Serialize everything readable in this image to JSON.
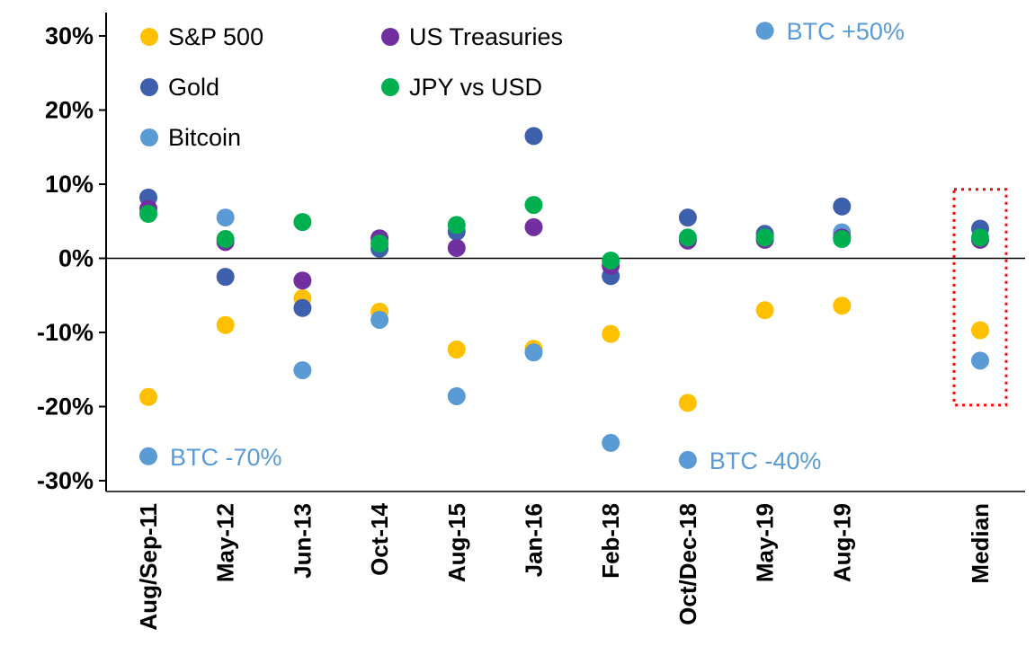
{
  "chart_data": {
    "type": "scatter",
    "title": "",
    "categories": [
      "Aug/Sep-11",
      "May-12",
      "Jun-13",
      "Oct-14",
      "Aug-15",
      "Jan-16",
      "Feb-18",
      "Oct/Dec-18",
      "May-19",
      "Aug-19",
      "Median"
    ],
    "ylim": [
      -30,
      30
    ],
    "yticks": [
      30,
      20,
      10,
      0,
      -10,
      -20,
      -30
    ],
    "ytick_suffix": "%",
    "grid": false,
    "legend_position": "top-left-inside",
    "series": [
      {
        "name": "S&P 500",
        "color": "#FFC000",
        "values": [
          -18.7,
          -9.0,
          -5.4,
          -7.2,
          -12.3,
          -12.2,
          -10.2,
          -19.5,
          -7.0,
          -6.4,
          -9.7
        ]
      },
      {
        "name": "Gold",
        "color": "#3E5FAC",
        "values": [
          8.2,
          -2.5,
          -6.7,
          1.3,
          3.6,
          16.5,
          -2.4,
          5.5,
          3.3,
          7.0,
          4.0
        ]
      },
      {
        "name": "Bitcoin",
        "color": "#5B9BD5",
        "values": [
          -26.7,
          5.5,
          -15.1,
          -8.3,
          -18.6,
          -12.7,
          -24.9,
          -27.2,
          30.7,
          3.5,
          -13.8
        ]
      },
      {
        "name": "US Treasuries",
        "color": "#7030A0",
        "values": [
          6.7,
          2.2,
          -3.0,
          2.7,
          1.4,
          4.2,
          -1.0,
          2.4,
          2.5,
          2.8,
          2.5
        ]
      },
      {
        "name": "JPY vs USD",
        "color": "#00B050",
        "values": [
          6.0,
          2.6,
          4.9,
          2.0,
          4.5,
          7.2,
          -0.3,
          2.8,
          2.8,
          2.6,
          2.8
        ]
      }
    ],
    "legend_columns": [
      [
        "S&P 500",
        "Gold",
        "Bitcoin"
      ],
      [
        "US Treasuries",
        "JPY vs USD"
      ]
    ],
    "annotations": [
      {
        "text": "BTC +50%",
        "category": "May-19",
        "value": 30.7,
        "color": "#5B9BD5"
      },
      {
        "text": "BTC -70%",
        "category": "Aug/Sep-11",
        "value": -26.7,
        "color": "#5B9BD5"
      },
      {
        "text": "BTC -40%",
        "category": "Oct/Dec-18",
        "value": -27.2,
        "color": "#5B9BD5"
      }
    ],
    "highlight_box": {
      "category": "Median",
      "value_top": 9.3,
      "value_bottom": -19.8,
      "color": "#FF0000",
      "style": "dotted"
    }
  }
}
